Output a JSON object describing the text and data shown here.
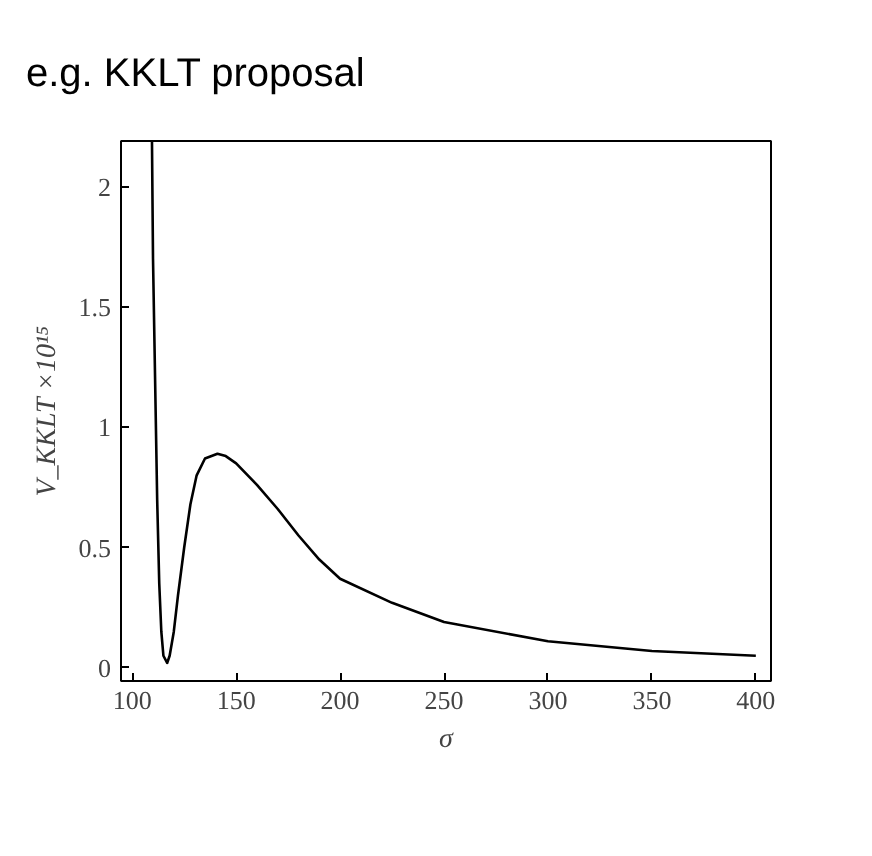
{
  "chart_data": {
    "type": "line",
    "title": "e.g. KKLT proposal",
    "xlabel": "σ",
    "ylabel": "V_KKLT ×10¹⁵",
    "x": [
      109.5,
      110,
      111,
      112,
      113,
      114,
      115,
      116.8,
      118,
      120,
      122,
      125,
      128,
      131,
      135,
      141,
      145,
      150,
      160,
      170,
      180,
      190,
      200,
      225,
      250,
      300,
      350,
      400
    ],
    "series": [
      {
        "color": "#000000",
        "values": [
          2.19,
          1.7,
          1.2,
          0.7,
          0.35,
          0.15,
          0.05,
          0.02,
          0.05,
          0.15,
          0.3,
          0.5,
          0.68,
          0.8,
          0.87,
          0.89,
          0.88,
          0.85,
          0.76,
          0.66,
          0.55,
          0.45,
          0.37,
          0.27,
          0.19,
          0.11,
          0.07,
          0.05
        ]
      }
    ],
    "xlim": [
      94.6,
      407.3
    ],
    "ylim": [
      -0.055,
      2.19
    ],
    "xticks": [
      100,
      150,
      200,
      250,
      300,
      350,
      400
    ],
    "yticks": [
      0,
      0.5,
      1,
      1.5,
      2
    ],
    "grid": false,
    "marker": "none",
    "line_style": "solid"
  }
}
